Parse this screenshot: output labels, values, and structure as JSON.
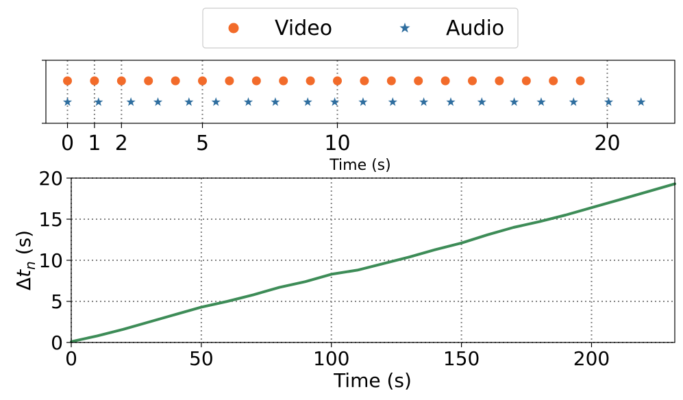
{
  "legend": {
    "placement": "top-center",
    "entries": [
      {
        "label": "Video",
        "color": "#f26b2a",
        "marker": "circle"
      },
      {
        "label": "Audio",
        "color": "#2f6e9f",
        "marker": "star"
      }
    ]
  },
  "chart_data": [
    {
      "type": "scatter",
      "xlabel": "Time (s)",
      "ylabel": "",
      "xlim": [
        -0.8,
        22.5
      ],
      "xticks": [
        0,
        1,
        2,
        5,
        10,
        20
      ],
      "grid": "x-only",
      "series": [
        {
          "name": "Video",
          "color": "#f26b2a",
          "marker": "circle",
          "x": [
            0,
            1,
            2,
            3,
            4,
            5,
            6,
            7,
            8,
            9,
            10,
            11,
            12,
            13,
            14,
            15,
            16,
            17,
            18,
            19
          ]
        },
        {
          "name": "Audio",
          "color": "#2f6e9f",
          "marker": "star",
          "x": [
            0,
            1.15,
            2.35,
            3.35,
            4.5,
            5.5,
            6.7,
            7.7,
            8.9,
            9.9,
            10.95,
            12.05,
            13.2,
            14.2,
            15.35,
            16.55,
            17.55,
            18.75,
            20.05,
            21.25
          ]
        }
      ]
    },
    {
      "type": "line",
      "xlabel": "Time (s)",
      "ylabel": "Δt_n (s)",
      "xlim": [
        0,
        232
      ],
      "ylim": [
        0,
        20
      ],
      "xticks": [
        0,
        50,
        100,
        150,
        200
      ],
      "yticks": [
        0,
        5,
        10,
        15,
        20
      ],
      "grid": true,
      "series": [
        {
          "name": "",
          "color": "#3d8c57",
          "x": [
            0,
            10,
            20,
            30,
            40,
            50,
            60,
            70,
            80,
            90,
            100,
            110,
            120,
            130,
            140,
            150,
            160,
            170,
            180,
            190,
            200,
            210,
            220,
            232
          ],
          "y": [
            0.1,
            0.8,
            1.6,
            2.5,
            3.4,
            4.3,
            5.0,
            5.8,
            6.7,
            7.4,
            8.3,
            8.8,
            9.6,
            10.4,
            11.3,
            12.1,
            13.1,
            14.0,
            14.7,
            15.5,
            16.4,
            17.3,
            18.2,
            19.3
          ]
        }
      ]
    }
  ]
}
